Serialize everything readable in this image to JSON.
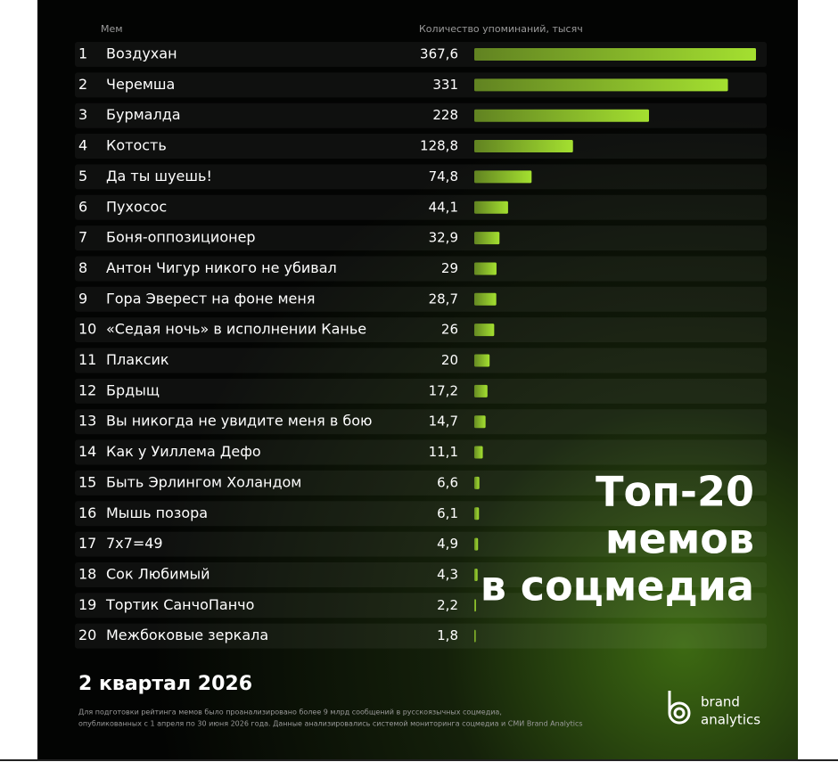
{
  "chart_data": {
    "type": "bar",
    "orientation": "horizontal",
    "title_lines": [
      "Топ-20",
      "мемов",
      "в соцмедиа"
    ],
    "subtitle": "2 квартал 2026",
    "category_header": "Мем",
    "value_header": "Количество упоминаний, тысяч",
    "ranks": [
      1,
      2,
      3,
      4,
      5,
      6,
      7,
      8,
      9,
      10,
      11,
      12,
      13,
      14,
      15,
      16,
      17,
      18,
      19,
      20
    ],
    "categories": [
      "Воздухан",
      "Черемша",
      "Бурмалда",
      "Котость",
      "Да ты шуешь!",
      "Пухосос",
      "Боня-оппозиционер",
      "Антон Чигур никого не убивал",
      "Гора Эверест на фоне меня",
      "«Седая ночь» в исполнении Канье",
      "Плаксик",
      "Брдыщ",
      "Вы никогда не увидите меня в бою",
      "Как у Уиллема Дефо",
      "Быть Эрлингом Холандом",
      "Мышь позора",
      "7х7=49",
      "Сок Любимый",
      "Тортик СанчоПанчо",
      "Межбоковые зеркала"
    ],
    "values": [
      367.6,
      331,
      228,
      128.8,
      74.8,
      44.1,
      32.9,
      29,
      28.7,
      26,
      20,
      17.2,
      14.7,
      11.1,
      6.6,
      6.1,
      4.9,
      4.3,
      2.2,
      1.8
    ],
    "value_labels": [
      "367,6",
      "331",
      "228",
      "128,8",
      "74,8",
      "44,1",
      "32,9",
      "29",
      "28,7",
      "26",
      "20",
      "17,2",
      "14,7",
      "11,1",
      "6,6",
      "6,1",
      "4,9",
      "4,3",
      "2,2",
      "1,8"
    ],
    "color": "#a4e030",
    "footnote_lines": [
      "Для подготовки рейтинга мемов было проанализировано более 9 млрд сообщений в русскоязычных соцмедиа,",
      "опубликованных с 1 апреля по 30 июня 2026 года. Данные анализировались системой мониторинга соцмедиа и СМИ Brand Analytics"
    ],
    "logo_lines": [
      "brand",
      "analytics"
    ]
  }
}
